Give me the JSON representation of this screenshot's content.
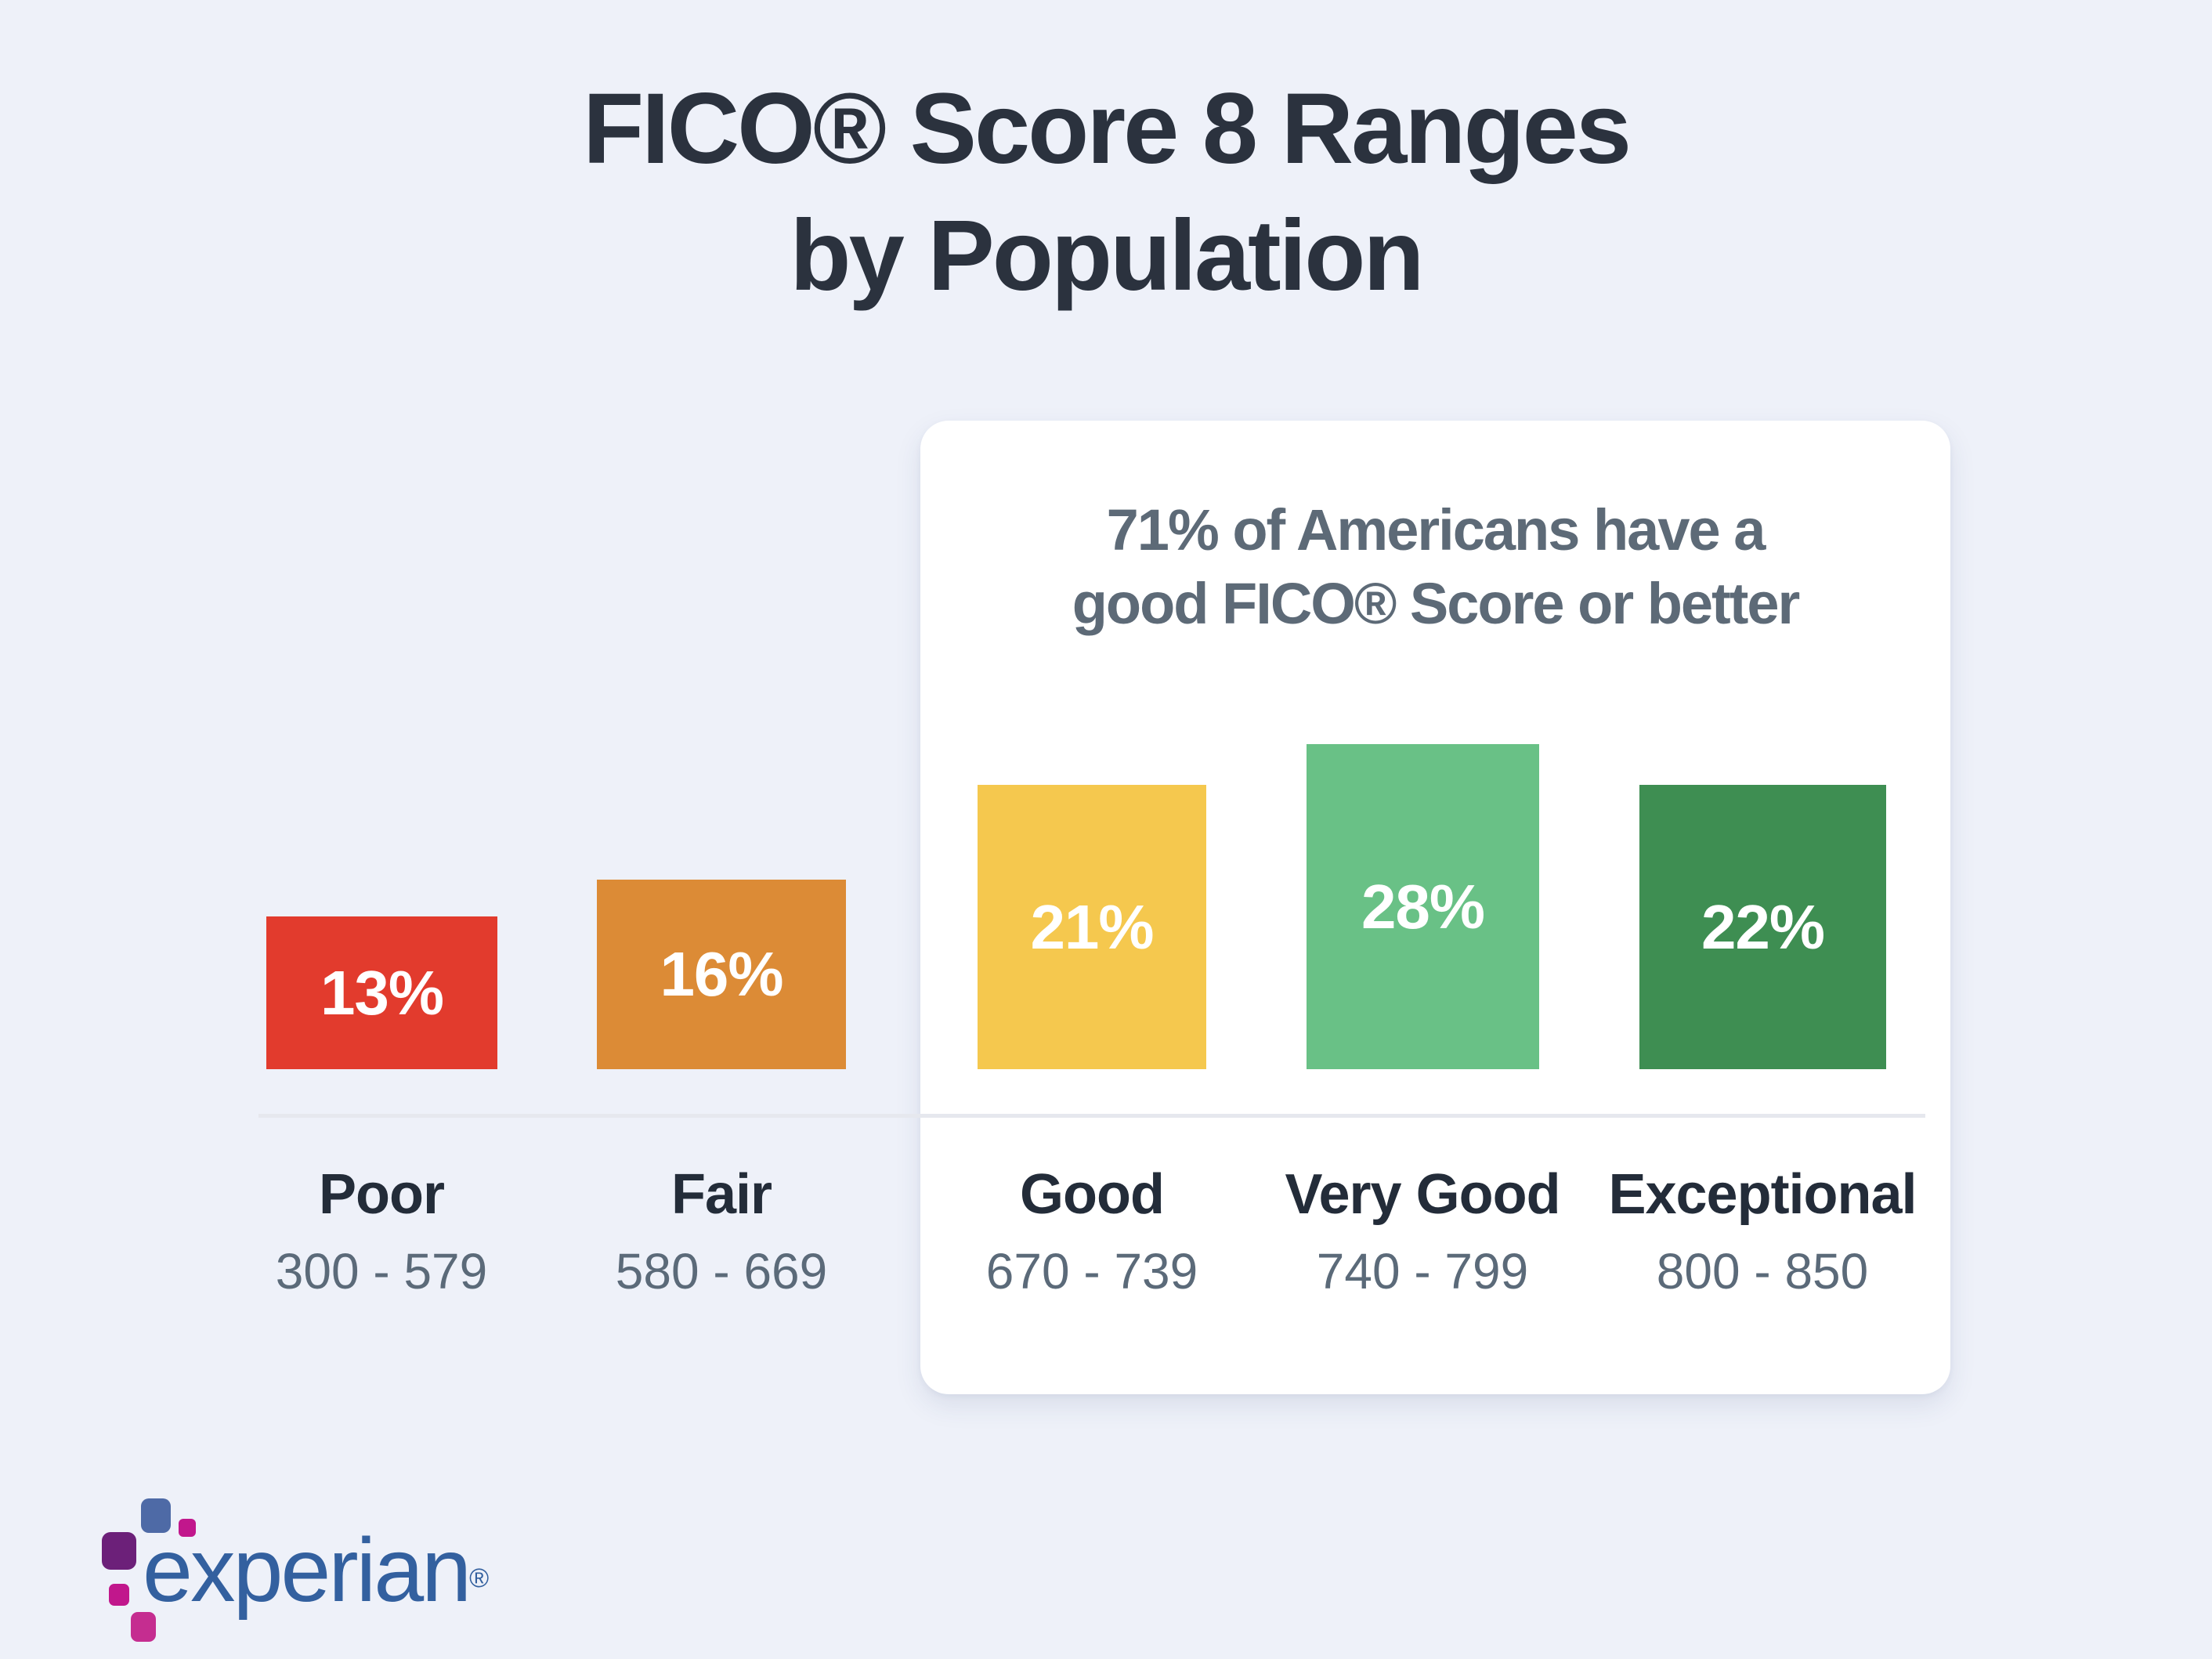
{
  "page": {
    "background": "#eef1f9"
  },
  "title": {
    "line1": "FICO® Score 8 Ranges",
    "line2": "by Population"
  },
  "callout": {
    "line1": "71% of Americans have a",
    "line2": "good FICO® Score or better"
  },
  "bars": [
    {
      "label": "Poor",
      "range": "300 - 579",
      "pct": "13%",
      "value": 13,
      "color": "#e23b2d"
    },
    {
      "label": "Fair",
      "range": "580 - 669",
      "pct": "16%",
      "value": 16,
      "color": "#dc8b36"
    },
    {
      "label": "Good",
      "range": "670 - 739",
      "pct": "21%",
      "value": 21,
      "color": "#f5c84e"
    },
    {
      "label": "Very Good",
      "range": "740 - 799",
      "pct": "28%",
      "value": 28,
      "color": "#69c186"
    },
    {
      "label": "Exceptional",
      "range": "800 - 850",
      "pct": "22%",
      "value": 22,
      "color": "#3e8e52"
    }
  ],
  "chart_data": {
    "type": "bar",
    "title": "FICO® Score 8 Ranges by Population",
    "categories": [
      "Poor",
      "Fair",
      "Good",
      "Very Good",
      "Exceptional"
    ],
    "category_ranges": [
      "300 - 579",
      "580 - 669",
      "670 - 739",
      "740 - 799",
      "800 - 850"
    ],
    "values": [
      13,
      16,
      21,
      28,
      22
    ],
    "unit": "%",
    "series_colors": [
      "#e23b2d",
      "#dc8b36",
      "#f5c84e",
      "#69c186",
      "#3e8e52"
    ],
    "annotation": "71% of Americans have a good FICO® Score or better",
    "annotation_covers": [
      "Good",
      "Very Good",
      "Exceptional"
    ],
    "data_labels": "inside-bar-percent",
    "grid": "off",
    "axis": "single-baseline"
  },
  "logo": {
    "wordmark": "experian",
    "registered": "®"
  }
}
